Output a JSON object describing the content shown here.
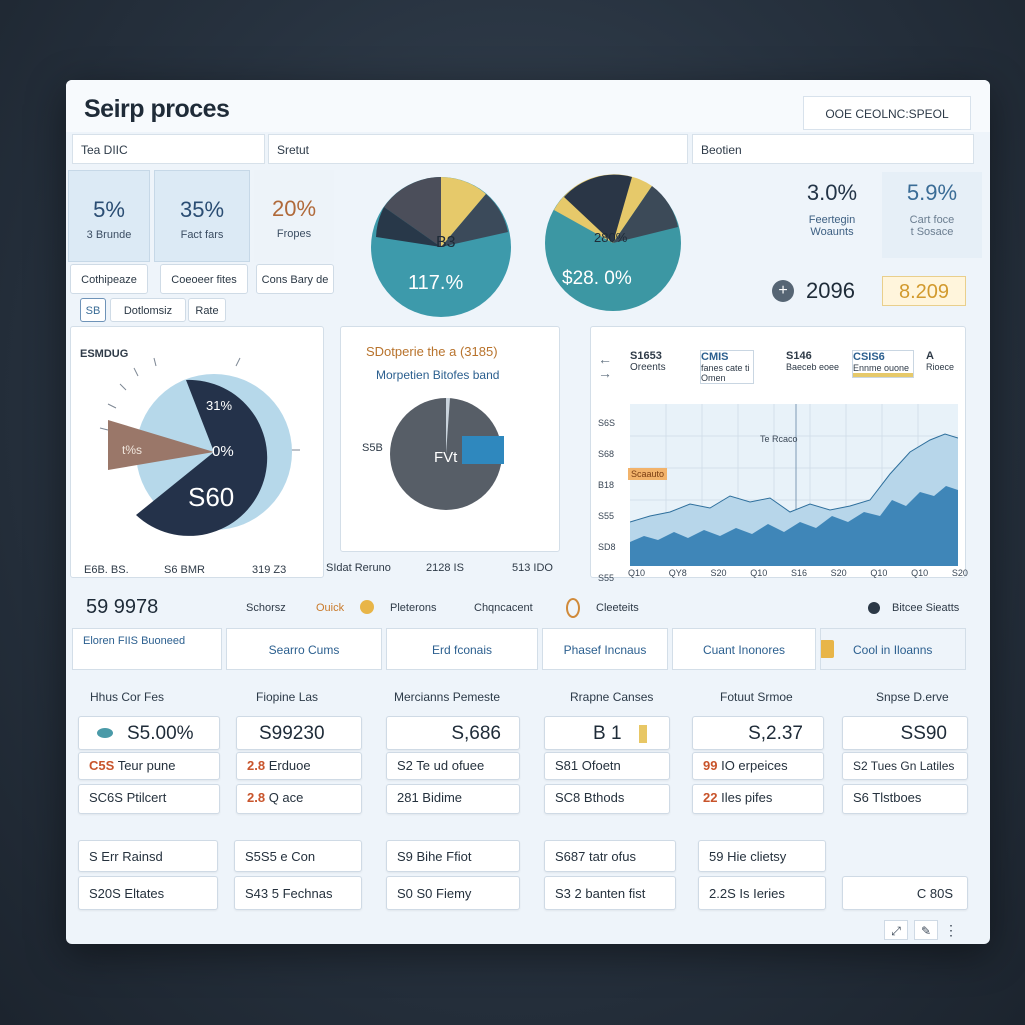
{
  "app": {
    "title": "Seirp proces",
    "top_right": "OOE CEOLNC:SPEOL"
  },
  "tabs": [
    {
      "label": "Tea DIIC"
    },
    {
      "label": "Sretut"
    },
    {
      "label": "Beotien"
    }
  ],
  "kpis": [
    {
      "value": "5%",
      "label": "3 Brunde"
    },
    {
      "value": "35%",
      "label": "Fact fars"
    },
    {
      "value": "20%",
      "label": "Fropes"
    },
    {
      "value": "3.0%",
      "label": "Feertegin\nWoaunts"
    },
    {
      "value": "5.9%",
      "label": "Cart foce\nt Sosace"
    }
  ],
  "filters": {
    "btn1": "Cothipeaze",
    "btn2": "Coeoeer fites",
    "btn3": "Cons Bary de",
    "btn4": "Dotlomsiz",
    "btn5": "Rate",
    "icon_box": "SB"
  },
  "pie1": {
    "top": "B3",
    "bottom": "117.%"
  },
  "pie2": {
    "top": "280%",
    "bottom": "$28. 0%"
  },
  "counter": {
    "value": "2096",
    "badge": "8.209"
  },
  "donut_chart": {
    "label_top": "ESMDUG",
    "slice_a": "31%",
    "slice_b": "0%",
    "center": "S60",
    "slice_c": "t%s",
    "footer": [
      "E6B. BS.",
      "S6 BMR",
      "319 Z3"
    ]
  },
  "middle_chart": {
    "title": "SDotperie the a (3185)",
    "subtitle": "Morpetien Bitofes band",
    "left_label": "S5B",
    "center": "FVt",
    "footer": [
      "SIdat Reruno",
      "2128 IS",
      "513 IDO"
    ]
  },
  "area_chart": {
    "legend": [
      {
        "value": "S1653",
        "label": "Oreents"
      },
      {
        "value": "CMIS",
        "label": "fanes cate ti Omen"
      },
      {
        "value": "S146",
        "label": "Baeceb eoee"
      },
      {
        "value": "CSIS6",
        "label": "Ennme ouone"
      },
      {
        "value": "A",
        "label": "Rioece"
      }
    ],
    "y_ticks": [
      "S6S",
      "S68",
      "B18",
      "S55",
      "SD8",
      "S55"
    ],
    "x_ticks": [
      "Q10",
      "QY8",
      "S20",
      "Q10",
      "S16",
      "S20",
      "Q10",
      "Q10",
      "S20"
    ],
    "annotation": "Te Rcaco",
    "marker": "Scaauto"
  },
  "summary": {
    "value": "59 9978",
    "items": [
      "Schorsz",
      "Ouick",
      "Pleterons",
      "Chqncacent",
      "Cleeteits"
    ],
    "right": "Bitcee Sieatts"
  },
  "section_tabs": [
    "Eloren FIIS Buoneed",
    "Searro Cums",
    "Erd fconais",
    "Phasef Incnaus",
    "Cuant Inonores",
    "Cool in Iloanns"
  ],
  "columns": [
    {
      "header": "Hhus Cor Fes",
      "value": "S5.00%",
      "rows": [
        {
          "a": "C5S",
          "b": "Teur pune"
        },
        {
          "a": "",
          "b": "SC6S Ptilcert"
        }
      ]
    },
    {
      "header": "Fiopine Las",
      "value": "S99230",
      "rows": [
        {
          "a": "2.8",
          "b": "Erduoe"
        },
        {
          "a": "2.8",
          "b": "Q ace"
        }
      ]
    },
    {
      "header": "Mercianns Pemeste",
      "value": "S,686",
      "rows": [
        {
          "a": "S2",
          "b": "Te ud ofuee"
        },
        {
          "a": "",
          "b": "281 Bidime"
        }
      ]
    },
    {
      "header": "Rrapne Canses",
      "value": "B 1",
      "rows": [
        {
          "a": "",
          "b": "S81 Ofoetn"
        },
        {
          "a": "",
          "b": "SC8 Bthods"
        }
      ]
    },
    {
      "header": "Fotuut Srmoe",
      "value": "S,2.37",
      "rows": [
        {
          "a": "99",
          "b": "IO erpeices"
        },
        {
          "a": "22",
          "b": "Iles pifes"
        }
      ]
    },
    {
      "header": "Snpse D.erve",
      "value": "SS90",
      "rows": [
        {
          "a": "",
          "b": "S2 Tues Gn Latiles"
        },
        {
          "a": "",
          "b": "S6 Tlstboes"
        }
      ]
    }
  ],
  "bottom_rows": [
    [
      "S Err Rainsd",
      "S5S5 e Con",
      "S9 Bihe Ffiot",
      "S687 tatr ofus",
      "59 Hie clietsy",
      ""
    ],
    [
      "S20S Eltates",
      "S43 5 Fechnas",
      "S0 S0 Fiemy",
      "S3 2 banten fist",
      "2.2S Is Ieries",
      "C 80S"
    ]
  ],
  "footer_icons": [
    "expand-icon",
    "edit-icon",
    "more-icon"
  ],
  "colors": {
    "navy": "#233447",
    "teal": "#3d8fa6",
    "light_blue": "#a9cfe4",
    "gold": "#e8c765",
    "brown": "#8a6b5f",
    "accent": "#c8542b"
  }
}
